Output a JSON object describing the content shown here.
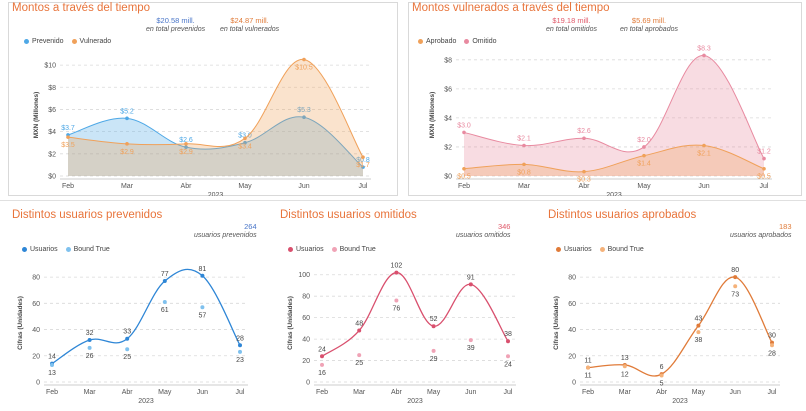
{
  "colors": {
    "title": "#e8743b",
    "blue": "#4ea8e6",
    "orange": "#f0a15a",
    "pink": "#e88aa0",
    "axis": "#555555",
    "grid": "#d9d9d9"
  },
  "panels": [
    {
      "id": "montos-tiempo",
      "title": "Montos a través del tiempo",
      "totals": [
        {
          "value": "$20.58 mill.",
          "desc": "en total prevenidos",
          "color": "#4a76c8"
        },
        {
          "value": "$24.87 mill.",
          "desc": "en total vulnerados",
          "color": "#e07b39"
        }
      ],
      "legend": [
        {
          "label": "Prevenido",
          "color": "#4ea8e6"
        },
        {
          "label": "Vulnerado",
          "color": "#f0a15a"
        }
      ],
      "chart_data": {
        "type": "area",
        "categories": [
          "Feb",
          "Mar",
          "Abr",
          "May",
          "Jun",
          "Jul"
        ],
        "xlabel": "2023",
        "ylabel": "MXN (Millones)",
        "yticks": [
          "$0",
          "$2",
          "$4",
          "$6",
          "$8",
          "$10"
        ],
        "ylim": [
          0,
          11
        ],
        "grid": true,
        "series": [
          {
            "name": "Prevenido",
            "color": "#4ea8e6",
            "values": [
              3.7,
              5.2,
              2.6,
              3.0,
              5.3,
              0.8
            ],
            "labels": [
              "$3.7",
              "$5.2",
              "$2.6",
              "$3.0",
              "$5.3",
              "$0.8"
            ]
          },
          {
            "name": "Vulnerado",
            "color": "#f0a15a",
            "values": [
              3.5,
              2.9,
              2.9,
              3.4,
              10.5,
              1.7
            ],
            "labels": [
              "$3.5",
              "$2.9",
              "$2.9",
              "$3.4",
              "$10.5",
              "$1.7"
            ]
          }
        ]
      }
    },
    {
      "id": "montos-vulnerados",
      "title": "Montos vulnerados a través del tiempo",
      "totals": [
        {
          "value": "$19.18 mill.",
          "desc": "en total omitidos",
          "color": "#e05a6a"
        },
        {
          "value": "$5.69 mill.",
          "desc": "en total aprobados",
          "color": "#e07b39"
        }
      ],
      "legend": [
        {
          "label": "Aprobado",
          "color": "#f0a15a"
        },
        {
          "label": "Omitido",
          "color": "#e88aa0"
        }
      ],
      "chart_data": {
        "type": "area",
        "categories": [
          "Feb",
          "Mar",
          "Abr",
          "May",
          "Jun",
          "Jul"
        ],
        "xlabel": "2023",
        "ylabel": "MXN (Millones)",
        "yticks": [
          "$0",
          "$2",
          "$4",
          "$6",
          "$8"
        ],
        "ylim": [
          0,
          8.4
        ],
        "grid": true,
        "series": [
          {
            "name": "Omitido",
            "color": "#e88aa0",
            "values": [
              3.0,
              2.1,
              2.6,
              2.0,
              8.3,
              1.2
            ],
            "labels": [
              "$3.0",
              "$2.1",
              "$2.6",
              "$2.0",
              "$8.3",
              "$1.2"
            ]
          },
          {
            "name": "Aprobado",
            "color": "#f0a15a",
            "values": [
              0.5,
              0.8,
              0.3,
              1.4,
              2.1,
              0.5
            ],
            "labels": [
              "$0.5",
              "$0.8",
              "$0.3",
              "$1.4",
              "$2.1",
              "$0.5"
            ]
          }
        ]
      }
    },
    {
      "id": "usuarios-prevenidos",
      "title": "Distintos usuarios prevenidos",
      "totals": [
        {
          "value": "264",
          "desc": "usuarios prevenidos",
          "color": "#4a76c8"
        }
      ],
      "legend": [
        {
          "label": "Usuarios",
          "color": "#2e86d6"
        },
        {
          "label": "Bound True",
          "color": "#7fc1ee"
        }
      ],
      "chart_data": {
        "type": "line",
        "categories": [
          "Feb",
          "Mar",
          "Abr",
          "May",
          "Jun",
          "Jul"
        ],
        "xlabel": "2023",
        "ylabel": "Cifras (Unidades)",
        "yticks": [
          "0",
          "20",
          "40",
          "60",
          "80"
        ],
        "ylim": [
          0,
          90
        ],
        "grid": true,
        "series": [
          {
            "name": "Usuarios",
            "color": "#2e86d6",
            "values": [
              14,
              32,
              33,
              77,
              81,
              28
            ],
            "labels": [
              "14",
              "32",
              "33",
              "77",
              "81",
              "28"
            ]
          },
          {
            "name": "Bound True",
            "color": "#7fc1ee",
            "values": [
              13,
              26,
              25,
              61,
              57,
              23
            ],
            "labels": [
              "13",
              "26",
              "25",
              "61",
              "57",
              "23"
            ]
          }
        ]
      }
    },
    {
      "id": "usuarios-omitidos",
      "title": "Distintos usuarios omitidos",
      "totals": [
        {
          "value": "346",
          "desc": "usuarios omitidos",
          "color": "#e05a6a"
        }
      ],
      "legend": [
        {
          "label": "Usuarios",
          "color": "#d9506e"
        },
        {
          "label": "Bound True",
          "color": "#f0a3b6"
        }
      ],
      "chart_data": {
        "type": "line",
        "categories": [
          "Feb",
          "Mar",
          "Abr",
          "May",
          "Jun",
          "Jul"
        ],
        "xlabel": "2023",
        "ylabel": "Cifras (Unidades)",
        "yticks": [
          "0",
          "20",
          "40",
          "60",
          "80",
          "100"
        ],
        "ylim": [
          0,
          110
        ],
        "grid": true,
        "series": [
          {
            "name": "Usuarios",
            "color": "#d9506e",
            "values": [
              24,
              48,
              102,
              52,
              91,
              38
            ],
            "labels": [
              "24",
              "48",
              "102",
              "52",
              "91",
              "38"
            ]
          },
          {
            "name": "Bound True",
            "color": "#f0a3b6",
            "values": [
              16,
              25,
              76,
              29,
              39,
              24
            ],
            "labels": [
              "16",
              "25",
              "76",
              "29",
              "39",
              "24"
            ]
          }
        ]
      }
    },
    {
      "id": "usuarios-aprobados",
      "title": "Distintos usuarios aprobados",
      "totals": [
        {
          "value": "183",
          "desc": "usuarios aprobados",
          "color": "#e07b39"
        }
      ],
      "legend": [
        {
          "label": "Usuarios",
          "color": "#e07b39"
        },
        {
          "label": "Bound True",
          "color": "#f5b27a"
        }
      ],
      "chart_data": {
        "type": "line",
        "categories": [
          "Feb",
          "Mar",
          "Abr",
          "May",
          "Jun",
          "Jul"
        ],
        "xlabel": "2023",
        "ylabel": "Cifras (Unidades)",
        "yticks": [
          "0",
          "20",
          "40",
          "60",
          "80"
        ],
        "ylim": [
          0,
          90
        ],
        "grid": true,
        "series": [
          {
            "name": "Usuarios",
            "color": "#e07b39",
            "values": [
              11,
              13,
              6,
              43,
              80,
              30
            ],
            "labels": [
              "11",
              "13",
              "6",
              "43",
              "80",
              "30"
            ]
          },
          {
            "name": "Bound True",
            "color": "#f5b27a",
            "values": [
              11,
              12,
              5,
              38,
              73,
              28
            ],
            "labels": [
              "11",
              "12",
              "5",
              "38",
              "73",
              "28"
            ]
          }
        ]
      }
    }
  ]
}
